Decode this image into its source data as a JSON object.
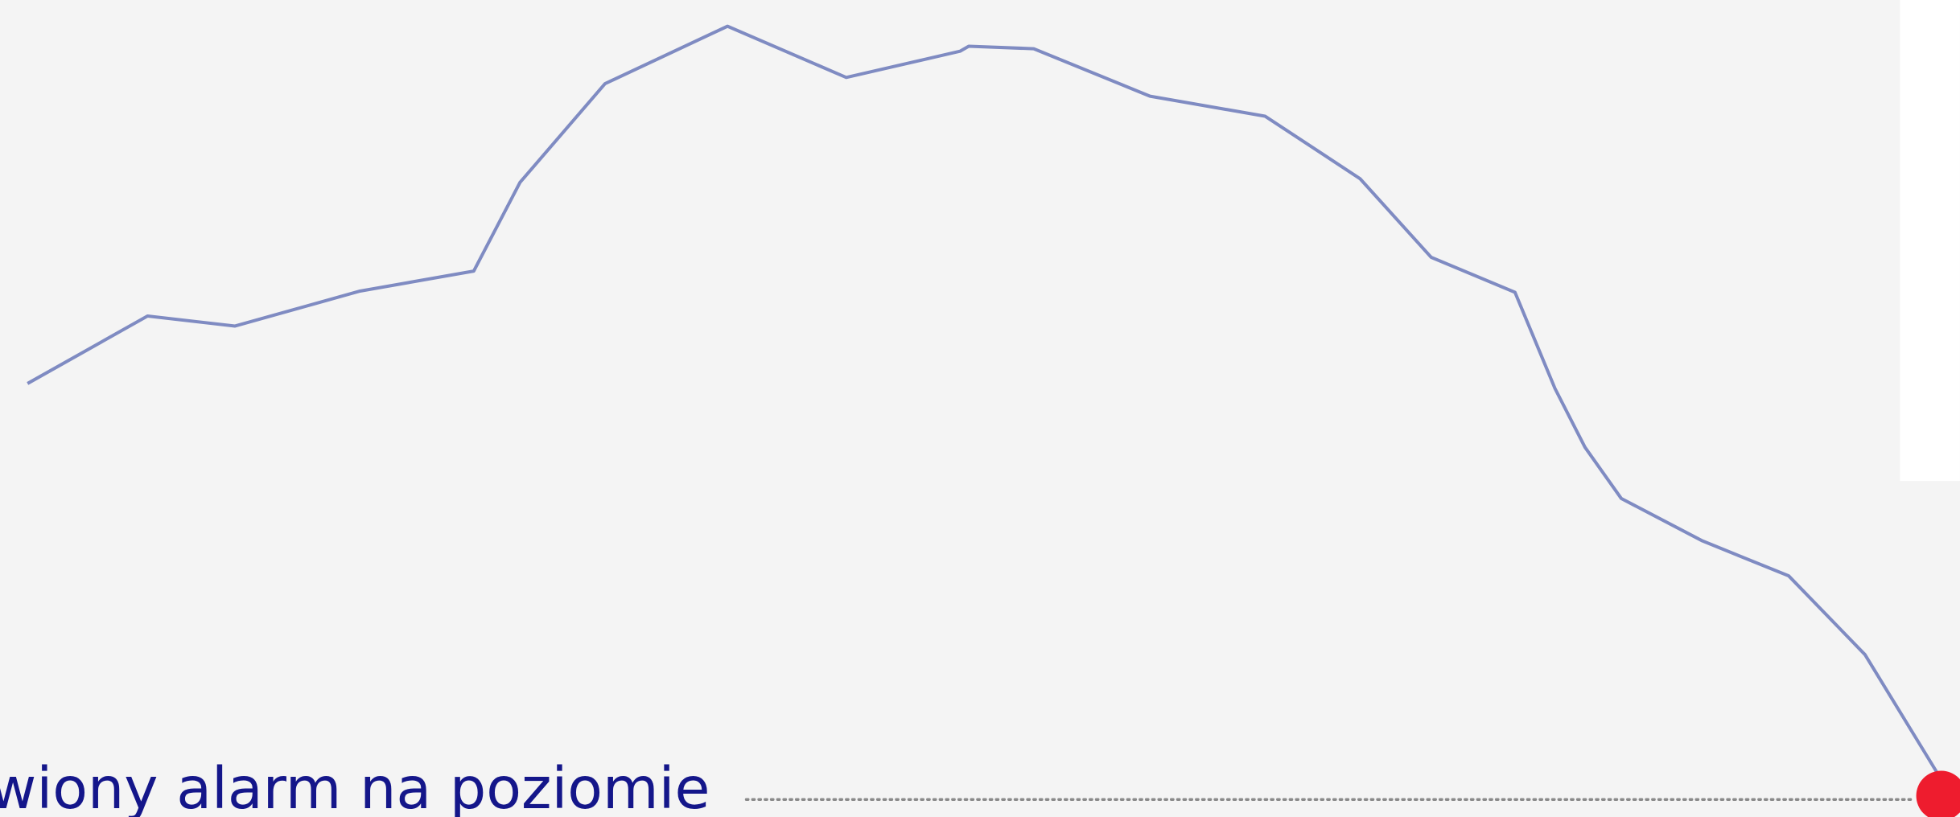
{
  "chart_data": {
    "type": "line",
    "annotation": "wiony alarm na poziomie",
    "x": [
      22,
      118,
      188,
      288,
      379,
      416,
      484,
      582,
      677,
      768,
      775,
      827,
      920,
      1012,
      1088,
      1145,
      1212,
      1244,
      1268,
      1297,
      1362,
      1431,
      1492,
      1550
    ],
    "series": [
      {
        "color": "#7f8bc2",
        "values": [
          347,
          401,
          393,
          421,
          437,
          508,
          587,
          633,
          592,
          613,
          617,
          615,
          577,
          561,
          511,
          448,
          420,
          343,
          296,
          255,
          221,
          193,
          130,
          35
        ]
      }
    ],
    "xlim": [
      0,
      1568
    ],
    "ylim": [
      0,
      654
    ]
  }
}
